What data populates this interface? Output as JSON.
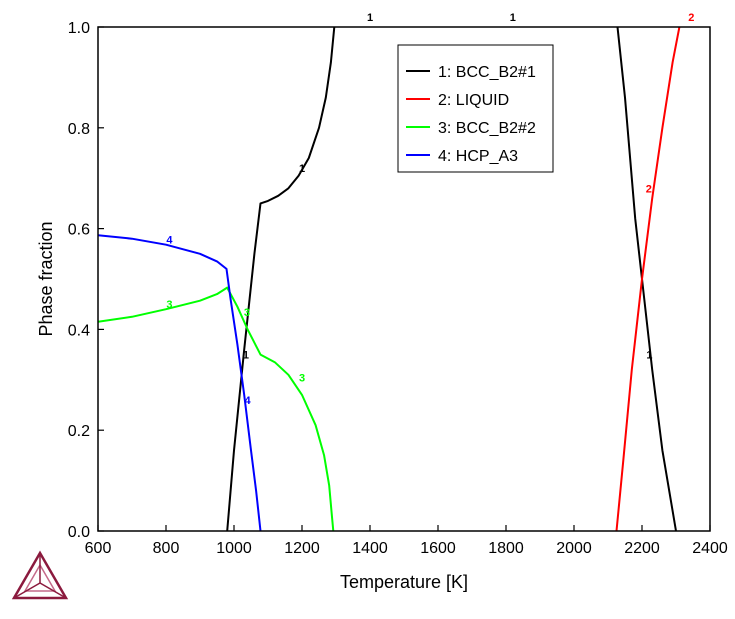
{
  "chart_data": {
    "type": "line",
    "xlabel": "Temperature [K]",
    "ylabel": "Phase fraction",
    "xlim": [
      600,
      2400
    ],
    "ylim": [
      0,
      1
    ],
    "x_ticks": [
      "600",
      "800",
      "1000",
      "1200",
      "1400",
      "1600",
      "1800",
      "2000",
      "2200",
      "2400"
    ],
    "y_ticks": [
      "0.0",
      "0.2",
      "0.4",
      "0.6",
      "0.8",
      "1.0"
    ],
    "grid": false,
    "legend": {
      "placement": "top-right",
      "entries": [
        "1: BCC_B2#1",
        "2: LIQUID",
        "3: BCC_B2#2",
        "4: HCP_A3"
      ]
    },
    "series": [
      {
        "name": "1: BCC_B2#1",
        "color": "#000000",
        "label": "1",
        "segments": [
          [
            [
              980,
              0.0
            ],
            [
              1000,
              0.16
            ],
            [
              1030,
              0.36
            ],
            [
              1060,
              0.55
            ],
            [
              1078,
              0.65
            ],
            [
              1100,
              0.655
            ],
            [
              1130,
              0.665
            ],
            [
              1160,
              0.68
            ],
            [
              1190,
              0.705
            ],
            [
              1220,
              0.74
            ],
            [
              1250,
              0.8
            ],
            [
              1270,
              0.86
            ],
            [
              1285,
              0.93
            ],
            [
              1295,
              1.0
            ]
          ],
          [
            [
              2128,
              1.0
            ],
            [
              2150,
              0.86
            ],
            [
              2180,
              0.62
            ],
            [
              2200,
              0.5
            ],
            [
              2230,
              0.32
            ],
            [
              2260,
              0.16
            ],
            [
              2300,
              0.0
            ]
          ]
        ],
        "annotations": [
          {
            "text": "1",
            "x": 1200,
            "y": 0.72
          },
          {
            "text": "1",
            "x": 1035,
            "y": 0.35
          },
          {
            "text": "1",
            "x": 1400,
            "y": 1.02
          },
          {
            "text": "1",
            "x": 1820,
            "y": 1.02
          },
          {
            "text": "1",
            "x": 2222,
            "y": 0.35
          }
        ]
      },
      {
        "name": "2: LIQUID",
        "color": "#ff0000",
        "label": "2",
        "segments": [
          [
            [
              2125,
              0.0
            ],
            [
              2145,
              0.14
            ],
            [
              2170,
              0.32
            ],
            [
              2200,
              0.5
            ],
            [
              2230,
              0.66
            ],
            [
              2260,
              0.8
            ],
            [
              2290,
              0.93
            ],
            [
              2310,
              1.0
            ]
          ]
        ],
        "annotations": [
          {
            "text": "2",
            "x": 2220,
            "y": 0.68
          },
          {
            "text": "2",
            "x": 2345,
            "y": 1.02
          }
        ]
      },
      {
        "name": "3: BCC_B2#2",
        "color": "#00ff00",
        "label": "3",
        "segments": [
          [
            [
              600,
              0.415
            ],
            [
              700,
              0.425
            ],
            [
              800,
              0.44
            ],
            [
              900,
              0.457
            ],
            [
              950,
              0.47
            ],
            [
              980,
              0.483
            ],
            [
              1010,
              0.445
            ],
            [
              1040,
              0.4
            ],
            [
              1078,
              0.35
            ],
            [
              1120,
              0.335
            ],
            [
              1160,
              0.31
            ],
            [
              1200,
              0.27
            ],
            [
              1240,
              0.21
            ],
            [
              1265,
              0.15
            ],
            [
              1280,
              0.09
            ],
            [
              1288,
              0.03
            ],
            [
              1292,
              0.0
            ]
          ]
        ],
        "annotations": [
          {
            "text": "3",
            "x": 810,
            "y": 0.45
          },
          {
            "text": "3",
            "x": 1038,
            "y": 0.435
          },
          {
            "text": "3",
            "x": 1200,
            "y": 0.305
          }
        ]
      },
      {
        "name": "4: HCP_A3",
        "color": "#0000ff",
        "label": "4",
        "segments": [
          [
            [
              600,
              0.587
            ],
            [
              700,
              0.58
            ],
            [
              800,
              0.568
            ],
            [
              900,
              0.55
            ],
            [
              950,
              0.535
            ],
            [
              978,
              0.52
            ],
            [
              990,
              0.46
            ],
            [
              1010,
              0.37
            ],
            [
              1030,
              0.27
            ],
            [
              1050,
              0.16
            ],
            [
              1065,
              0.08
            ],
            [
              1078,
              0.0
            ]
          ]
        ],
        "annotations": [
          {
            "text": "4",
            "x": 810,
            "y": 0.578
          },
          {
            "text": "4",
            "x": 1040,
            "y": 0.26
          }
        ]
      }
    ]
  }
}
